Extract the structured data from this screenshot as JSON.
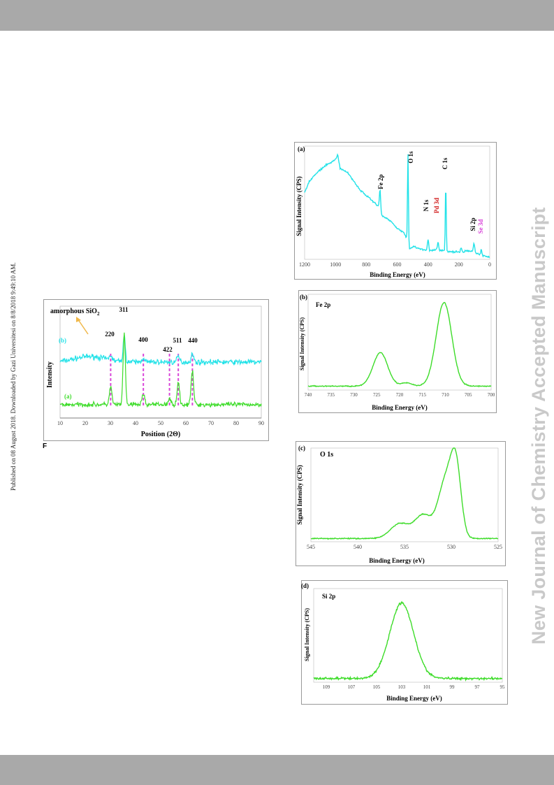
{
  "side_note_left": "Published on 08 August 2018. Downloaded by Gazi Universitesi on 8/8/2018 9:49:10 AM.",
  "side_note_right": "New Journal of Chemistry Accepted Manuscript",
  "figure_label": "F",
  "colors": {
    "cyan": "#22e2e8",
    "green": "#3ddc29",
    "magenta": "#d946d9",
    "red": "#d22020",
    "arrow": "#f0b84a"
  },
  "chart_data": [
    {
      "id": "xrd",
      "type": "line",
      "xlabel": "Position (2Θ)",
      "ylabel": "Intensity",
      "xlim": [
        10,
        90
      ],
      "xticks": [
        10,
        20,
        30,
        40,
        50,
        60,
        70,
        80,
        90
      ],
      "series": [
        {
          "name": "(b)",
          "color": "#22e2e8",
          "baseline": 0.5,
          "noise": 0.035,
          "peaks": [
            [
              22,
              0.05,
              6
            ],
            [
              30.1,
              0.04,
              0.5
            ],
            [
              35.5,
              0.22,
              0.45
            ],
            [
              43.1,
              0.04,
              0.5
            ],
            [
              57,
              0.05,
              0.5
            ],
            [
              62.6,
              0.07,
              0.5
            ]
          ]
        },
        {
          "name": "(a)",
          "color": "#3ddc29",
          "baseline": 0.12,
          "noise": 0.03,
          "peaks": [
            [
              30.1,
              0.16,
              0.5
            ],
            [
              35.5,
              0.62,
              0.45
            ],
            [
              43.1,
              0.1,
              0.5
            ],
            [
              53.5,
              0.05,
              0.5
            ],
            [
              57,
              0.2,
              0.5
            ],
            [
              62.6,
              0.3,
              0.5
            ]
          ]
        }
      ],
      "annotations": [
        "amorphous SiO2",
        "220",
        "311",
        "400",
        "422",
        "511",
        "440"
      ],
      "reference_lines": [
        30.1,
        43.1,
        53.5,
        57,
        62.6
      ]
    },
    {
      "id": "survey",
      "panel": "(a)",
      "type": "line",
      "xlabel": "Binding Energy (eV)",
      "ylabel": "Signal Intensity (CPS)",
      "xlim": [
        1200,
        0
      ],
      "xticks": [
        1200,
        1000,
        800,
        600,
        400,
        200,
        0
      ],
      "color": "#22e2e8",
      "outline": [
        [
          1200,
          0.6
        ],
        [
          1170,
          0.7
        ],
        [
          1120,
          0.78
        ],
        [
          1060,
          0.85
        ],
        [
          1000,
          0.9
        ],
        [
          985,
          0.95
        ],
        [
          970,
          0.82
        ],
        [
          920,
          0.78
        ],
        [
          880,
          0.7
        ],
        [
          840,
          0.62
        ],
        [
          800,
          0.57
        ],
        [
          760,
          0.52
        ],
        [
          720,
          0.47
        ],
        [
          700,
          0.38
        ],
        [
          680,
          0.37
        ],
        [
          640,
          0.33
        ],
        [
          600,
          0.27
        ],
        [
          560,
          0.23
        ],
        [
          540,
          0.18
        ],
        [
          520,
          0.08
        ],
        [
          490,
          0.1
        ],
        [
          460,
          0.08
        ],
        [
          420,
          0.07
        ],
        [
          380,
          0.06
        ],
        [
          340,
          0.07
        ],
        [
          300,
          0.06
        ],
        [
          260,
          0.05
        ],
        [
          220,
          0.05
        ],
        [
          180,
          0.04
        ],
        [
          150,
          0.06
        ],
        [
          100,
          0.05
        ],
        [
          60,
          0.02
        ],
        [
          30,
          0.01
        ],
        [
          0,
          0.0
        ]
      ],
      "peaks": [
        [
          711,
          0.2,
          4
        ],
        [
          530,
          0.82,
          3
        ],
        [
          400,
          0.1,
          4
        ],
        [
          335,
          0.07,
          4
        ],
        [
          285,
          0.62,
          3
        ],
        [
          185,
          0.05,
          4
        ],
        [
          102,
          0.08,
          4
        ],
        [
          55,
          0.05,
          4
        ]
      ],
      "annotations": {
        "fe2p": "Fe 2p",
        "o1s": "O 1s",
        "n1s": "N 1s",
        "pd3d": "Pd 3d",
        "c1s": "C 1s",
        "si2p": "Si 2p",
        "se3d": "Se 3d"
      }
    },
    {
      "id": "fe2p",
      "panel": "(b)",
      "type": "line",
      "title": "Fe 2p",
      "xlabel": "Binding Energy (eV)",
      "ylabel": "Signal Intensity (CPS)",
      "xlim": [
        740,
        700
      ],
      "xticks": [
        740,
        735,
        730,
        725,
        720,
        715,
        710,
        705,
        700
      ],
      "color": "#3ddc29",
      "peaks": [
        [
          724.2,
          0.37,
          1.6
        ],
        [
          718.5,
          0.035,
          1.2
        ],
        [
          710.3,
          0.92,
          1.7
        ]
      ]
    },
    {
      "id": "o1s",
      "panel": "(c)",
      "type": "line",
      "title": "O 1s",
      "xlabel": "Binding Energy (eV)",
      "ylabel": "Signal Intensity (CPS)",
      "xlim": [
        545,
        525
      ],
      "xticks": [
        545,
        540,
        535,
        530,
        525
      ],
      "color": "#3ddc29",
      "peaks": [
        [
          535.5,
          0.16,
          1.0
        ],
        [
          533,
          0.25,
          0.9
        ],
        [
          530.6,
          0.62,
          0.8
        ],
        [
          529.5,
          0.7,
          0.55
        ]
      ]
    },
    {
      "id": "si2p",
      "panel": "(d)",
      "type": "line",
      "title": "Si 2p",
      "xlabel": "Binding Energy (eV)",
      "ylabel": "Signal Intensity (CPS)",
      "xlim": [
        110,
        95
      ],
      "xticks": [
        109,
        107,
        105,
        103,
        101,
        99,
        97,
        95
      ],
      "color": "#3ddc29",
      "peaks": [
        [
          103,
          0.9,
          0.95
        ]
      ]
    }
  ]
}
